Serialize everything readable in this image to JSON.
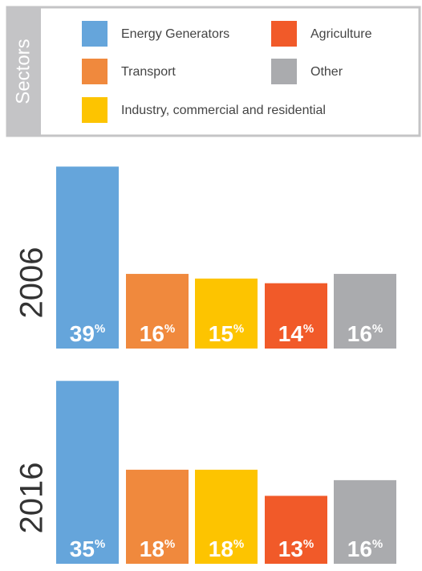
{
  "chart_data": {
    "type": "bar",
    "legend_title": "Sectors",
    "categories": [
      "Energy Generators",
      "Transport",
      "Industry, commercial and residential",
      "Agriculture",
      "Other"
    ],
    "colors": [
      "#65a5db",
      "#f0893d",
      "#fdc400",
      "#f15a29",
      "#aaabae"
    ],
    "unit": "%",
    "series": [
      {
        "name": "2006",
        "values": [
          39,
          16,
          15,
          14,
          16
        ],
        "ylim": [
          0,
          42
        ]
      },
      {
        "name": "2016",
        "values": [
          35,
          18,
          18,
          13,
          16
        ],
        "ylim": [
          0,
          37.5
        ]
      }
    ]
  }
}
